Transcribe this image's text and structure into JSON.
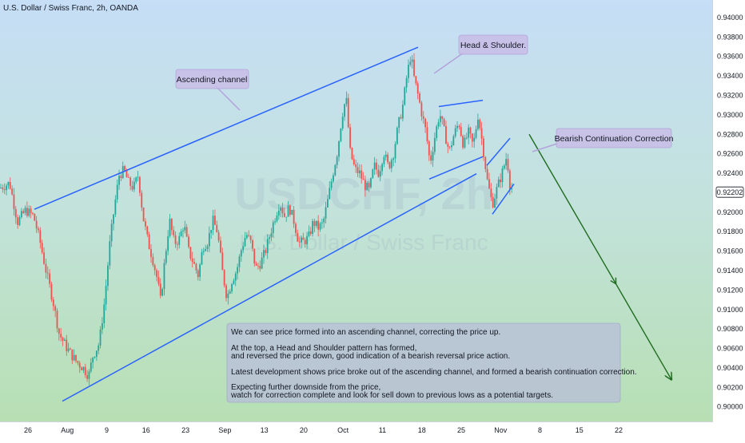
{
  "chart_data": {
    "type": "candlestick",
    "title": "U.S. Dollar / Swiss Franc, 2h, OANDA",
    "watermark_symbol": "USDCHF, 2h",
    "watermark_name": "U.S. Dollar / Swiss Franc",
    "ylim": [
      0.8985,
      0.9418
    ],
    "y_ticks": [
      "0.94000",
      "0.93800",
      "0.93600",
      "0.93400",
      "0.93200",
      "0.93000",
      "0.92800",
      "0.92600",
      "0.92400",
      "0.92000",
      "0.91800",
      "0.91600",
      "0.91400",
      "0.91200",
      "0.91000",
      "0.90800",
      "0.90600",
      "0.90400",
      "0.90200",
      "0.90000"
    ],
    "last_price": "0.92202",
    "x_ticks": [
      "26",
      "Aug",
      "9",
      "16",
      "23",
      "Sep",
      "13",
      "20",
      "Oct",
      "11",
      "18",
      "25",
      "Nov",
      "8",
      "15",
      "22"
    ],
    "price_path": [
      [
        0,
        0.9225
      ],
      [
        12,
        0.923
      ],
      [
        22,
        0.919
      ],
      [
        32,
        0.9202
      ],
      [
        42,
        0.9196
      ],
      [
        50,
        0.917
      ],
      [
        58,
        0.9138
      ],
      [
        66,
        0.911
      ],
      [
        74,
        0.9075
      ],
      [
        84,
        0.906
      ],
      [
        94,
        0.9048
      ],
      [
        104,
        0.904
      ],
      [
        111,
        0.9032
      ],
      [
        116,
        0.9052
      ],
      [
        124,
        0.9065
      ],
      [
        131,
        0.911
      ],
      [
        137,
        0.9165
      ],
      [
        143,
        0.9205
      ],
      [
        149,
        0.9238
      ],
      [
        155,
        0.9243
      ],
      [
        161,
        0.923
      ],
      [
        167,
        0.9225
      ],
      [
        173,
        0.9238
      ],
      [
        179,
        0.9195
      ],
      [
        185,
        0.917
      ],
      [
        191,
        0.9152
      ],
      [
        197,
        0.913
      ],
      [
        201,
        0.9108
      ],
      [
        206,
        0.915
      ],
      [
        212,
        0.9192
      ],
      [
        218,
        0.9168
      ],
      [
        224,
        0.9172
      ],
      [
        230,
        0.9188
      ],
      [
        236,
        0.916
      ],
      [
        242,
        0.9148
      ],
      [
        248,
        0.9135
      ],
      [
        254,
        0.9165
      ],
      [
        260,
        0.917
      ],
      [
        266,
        0.9192
      ],
      [
        272,
        0.918
      ],
      [
        278,
        0.914
      ],
      [
        284,
        0.9112
      ],
      [
        290,
        0.913
      ],
      [
        296,
        0.914
      ],
      [
        302,
        0.9162
      ],
      [
        308,
        0.9178
      ],
      [
        314,
        0.9168
      ],
      [
        320,
        0.9142
      ],
      [
        326,
        0.9148
      ],
      [
        332,
        0.916
      ],
      [
        338,
        0.9178
      ],
      [
        344,
        0.9195
      ],
      [
        350,
        0.921
      ],
      [
        356,
        0.9196
      ],
      [
        362,
        0.9205
      ],
      [
        368,
        0.919
      ],
      [
        374,
        0.9168
      ],
      [
        380,
        0.917
      ],
      [
        386,
        0.9174
      ],
      [
        392,
        0.919
      ],
      [
        398,
        0.9184
      ],
      [
        404,
        0.9188
      ],
      [
        410,
        0.9212
      ],
      [
        416,
        0.9238
      ],
      [
        422,
        0.9262
      ],
      [
        428,
        0.93
      ],
      [
        433,
        0.9318
      ],
      [
        438,
        0.9262
      ],
      [
        444,
        0.9244
      ],
      [
        450,
        0.924
      ],
      [
        456,
        0.9228
      ],
      [
        462,
        0.9222
      ],
      [
        468,
        0.9248
      ],
      [
        474,
        0.924
      ],
      [
        480,
        0.9262
      ],
      [
        486,
        0.9246
      ],
      [
        492,
        0.926
      ],
      [
        498,
        0.9288
      ],
      [
        504,
        0.931
      ],
      [
        509,
        0.934
      ],
      [
        514,
        0.9362
      ],
      [
        518,
        0.9338
      ],
      [
        523,
        0.932
      ],
      [
        528,
        0.93
      ],
      [
        533,
        0.9282
      ],
      [
        538,
        0.925
      ],
      [
        544,
        0.9278
      ],
      [
        550,
        0.9302
      ],
      [
        556,
        0.9282
      ],
      [
        562,
        0.9262
      ],
      [
        568,
        0.928
      ],
      [
        574,
        0.9292
      ],
      [
        580,
        0.9268
      ],
      [
        586,
        0.9282
      ],
      [
        592,
        0.9268
      ],
      [
        598,
        0.93
      ],
      [
        604,
        0.9268
      ],
      [
        610,
        0.923
      ],
      [
        616,
        0.9208
      ],
      [
        622,
        0.9225
      ],
      [
        628,
        0.924
      ],
      [
        634,
        0.9258
      ],
      [
        638,
        0.9228
      ],
      [
        642,
        0.9222
      ]
    ],
    "trend_lines": [
      {
        "name": "channel-upper",
        "color": "#2962ff",
        "x": [
          43,
          523
        ],
        "y": [
          0.9203,
          0.93695
        ]
      },
      {
        "name": "channel-lower",
        "color": "#2962ff",
        "x": [
          78,
          596
        ],
        "y": [
          0.90058,
          0.92395
        ]
      },
      {
        "name": "hs-neckline",
        "color": "#2962ff",
        "x": [
          537,
          604
        ],
        "y": [
          0.9234,
          0.9257
        ]
      },
      {
        "name": "hs-top",
        "color": "#2962ff",
        "x": [
          549,
          604
        ],
        "y": [
          0.93085,
          0.9315
        ]
      },
      {
        "name": "flag-upper",
        "color": "#2962ff",
        "x": [
          609,
          638
        ],
        "y": [
          0.9248,
          0.9276
        ]
      },
      {
        "name": "flag-lower",
        "color": "#2962ff",
        "x": [
          616,
          643
        ],
        "y": [
          0.9198,
          0.9229
        ]
      }
    ],
    "forecast_arrow": {
      "color": "#1f6b1f",
      "x": [
        662,
        840
      ],
      "y": [
        0.928,
        0.9028
      ]
    },
    "annotations": [
      {
        "text": "Ascending channel"
      },
      {
        "text": "Head & Shoulder."
      },
      {
        "text": "Bearish Continuation Correction"
      }
    ],
    "note_lines": [
      "We can see price formed into an ascending channel, correcting the price up.",
      "",
      "At the top, a Head and Shoulder pattern has formed,",
      "and reversed the price down, good indication of a bearish reversal price action.",
      "",
      "Latest development shows price broke out of the ascending channel, and formed a bearish continuation correction.",
      "",
      "Expecting further downside from the price,",
      "watch for correction complete and look for sell down to previous lows as a potential targets."
    ],
    "colors": {
      "up": "#26a69a",
      "down": "#ef5350",
      "line": "#2962ff",
      "arrow": "#1f6b1f",
      "bg_top": "#c6def6",
      "bg_bottom": "#b6dfb0"
    }
  }
}
